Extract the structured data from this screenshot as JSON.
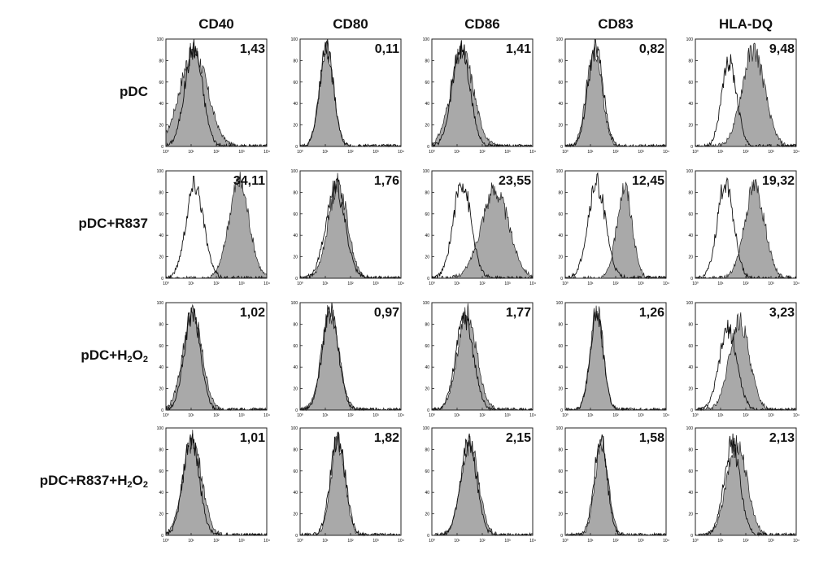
{
  "chart_data": {
    "type": "histogram-grid",
    "title": "",
    "columns": [
      "CD40",
      "CD80",
      "CD86",
      "CD83",
      "HLA-DQ"
    ],
    "rows": [
      {
        "label": "pDC",
        "label_sub": ""
      },
      {
        "label": "pDC+R837",
        "label_sub": ""
      },
      {
        "label": "pDC+H",
        "label_sub": "2",
        "label_mid": "O",
        "label_sub2": "2"
      },
      {
        "label": "pDC+R837+H",
        "label_sub": "2",
        "label_mid": "O",
        "label_sub2": "2"
      }
    ],
    "values": [
      [
        "1,43",
        "0,11",
        "1,41",
        "0,82",
        "9,48"
      ],
      [
        "34,11",
        "1,76",
        "23,55",
        "12,45",
        "19,32"
      ],
      [
        "1,02",
        "0,97",
        "1,77",
        "1,26",
        "3,23"
      ],
      [
        "1,01",
        "1,82",
        "2,15",
        "1,58",
        "2,13"
      ]
    ],
    "y_ticks": [
      "0",
      "20",
      "40",
      "60",
      "80",
      "100"
    ],
    "x_ticks": [
      "10⁰",
      "10¹",
      "10²",
      "10³",
      "10⁴"
    ],
    "ylim": [
      0,
      100
    ],
    "x_scale": "log",
    "xlim": [
      1,
      10000
    ],
    "series": [
      {
        "fill": "#a9a9a9"
      },
      {
        "fill": "none"
      }
    ],
    "peaks": [
      [
        {
          "iso": [
            1.1,
            0.35,
            92
          ],
          "stain": [
            1.1,
            0.55,
            88
          ]
        },
        {
          "iso": [
            1.05,
            0.28,
            92
          ],
          "stain": [
            1.05,
            0.28,
            90
          ]
        },
        {
          "iso": [
            1.15,
            0.35,
            92
          ],
          "stain": [
            1.2,
            0.45,
            88
          ]
        },
        {
          "iso": [
            1.2,
            0.3,
            92
          ],
          "stain": [
            1.15,
            0.3,
            90
          ]
        },
        {
          "iso": [
            1.35,
            0.3,
            78
          ],
          "stain": [
            2.3,
            0.45,
            90
          ]
        }
      ],
      [
        {
          "iso": [
            1.15,
            0.35,
            88
          ],
          "stain": [
            2.9,
            0.4,
            90
          ]
        },
        {
          "iso": [
            1.4,
            0.38,
            86
          ],
          "stain": [
            1.5,
            0.38,
            88
          ]
        },
        {
          "iso": [
            1.2,
            0.35,
            90
          ],
          "stain": [
            2.5,
            0.55,
            82
          ]
        },
        {
          "iso": [
            1.25,
            0.35,
            88
          ],
          "stain": [
            2.35,
            0.3,
            85
          ]
        },
        {
          "iso": [
            1.2,
            0.32,
            90
          ],
          "stain": [
            2.35,
            0.4,
            85
          ]
        }
      ],
      [
        {
          "iso": [
            1.05,
            0.32,
            90
          ],
          "stain": [
            1.05,
            0.38,
            90
          ]
        },
        {
          "iso": [
            1.2,
            0.32,
            92
          ],
          "stain": [
            1.2,
            0.34,
            92
          ]
        },
        {
          "iso": [
            1.3,
            0.35,
            86
          ],
          "stain": [
            1.4,
            0.38,
            90
          ]
        },
        {
          "iso": [
            1.25,
            0.26,
            90
          ],
          "stain": [
            1.25,
            0.26,
            92
          ]
        },
        {
          "iso": [
            1.3,
            0.35,
            75
          ],
          "stain": [
            1.75,
            0.4,
            82
          ]
        }
      ],
      [
        {
          "iso": [
            1.0,
            0.32,
            90
          ],
          "stain": [
            1.05,
            0.38,
            88
          ]
        },
        {
          "iso": [
            1.5,
            0.3,
            90
          ],
          "stain": [
            1.5,
            0.28,
            88
          ]
        },
        {
          "iso": [
            1.45,
            0.32,
            88
          ],
          "stain": [
            1.5,
            0.35,
            85
          ]
        },
        {
          "iso": [
            1.4,
            0.26,
            88
          ],
          "stain": [
            1.45,
            0.26,
            88
          ]
        },
        {
          "iso": [
            1.45,
            0.32,
            85
          ],
          "stain": [
            1.65,
            0.4,
            86
          ]
        }
      ]
    ]
  }
}
